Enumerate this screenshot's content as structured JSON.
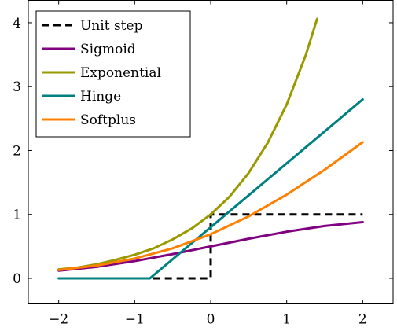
{
  "chart_data": {
    "type": "line",
    "title": "",
    "xlabel": "",
    "ylabel": "",
    "xlim": [
      -2.4,
      2.4
    ],
    "ylim": [
      -0.4,
      4.35
    ],
    "xticks": [
      -2,
      -1,
      0,
      1,
      2
    ],
    "yticks": [
      0,
      1,
      2,
      3,
      4
    ],
    "xtick_labels": [
      "−2",
      "−1",
      "0",
      "1",
      "2"
    ],
    "ytick_labels": [
      "0",
      "1",
      "2",
      "3",
      "4"
    ],
    "grid": false,
    "legend_position": "top-left",
    "series": [
      {
        "name": "Unit step",
        "color": "#000000",
        "dashed": true,
        "x": [
          -2,
          0,
          0,
          2
        ],
        "y": [
          0,
          0,
          1,
          1
        ]
      },
      {
        "name": "Sigmoid",
        "color": "#800080",
        "dashed": false,
        "x": [
          -2,
          -1.5,
          -1,
          -0.5,
          0,
          0.5,
          1,
          1.5,
          2
        ],
        "y": [
          0.12,
          0.18,
          0.27,
          0.38,
          0.5,
          0.62,
          0.73,
          0.82,
          0.88
        ]
      },
      {
        "name": "Exponential",
        "color": "#999900",
        "dashed": false,
        "x": [
          -2,
          -1.75,
          -1.5,
          -1.25,
          -1,
          -0.75,
          -0.5,
          -0.25,
          0,
          0.25,
          0.5,
          0.75,
          1,
          1.25,
          1.4
        ],
        "y": [
          0.14,
          0.17,
          0.22,
          0.29,
          0.37,
          0.47,
          0.61,
          0.78,
          1.0,
          1.28,
          1.65,
          2.12,
          2.72,
          3.49,
          4.06
        ]
      },
      {
        "name": "Hinge",
        "color": "#008080",
        "dashed": false,
        "x": [
          -2,
          -0.8,
          2
        ],
        "y": [
          0,
          0,
          2.8
        ]
      },
      {
        "name": "Softplus",
        "color": "#ff8000",
        "dashed": false,
        "x": [
          -2,
          -1.5,
          -1,
          -0.5,
          0,
          0.5,
          1,
          1.5,
          2
        ],
        "y": [
          0.13,
          0.2,
          0.31,
          0.47,
          0.69,
          0.97,
          1.31,
          1.7,
          2.13
        ]
      }
    ]
  }
}
